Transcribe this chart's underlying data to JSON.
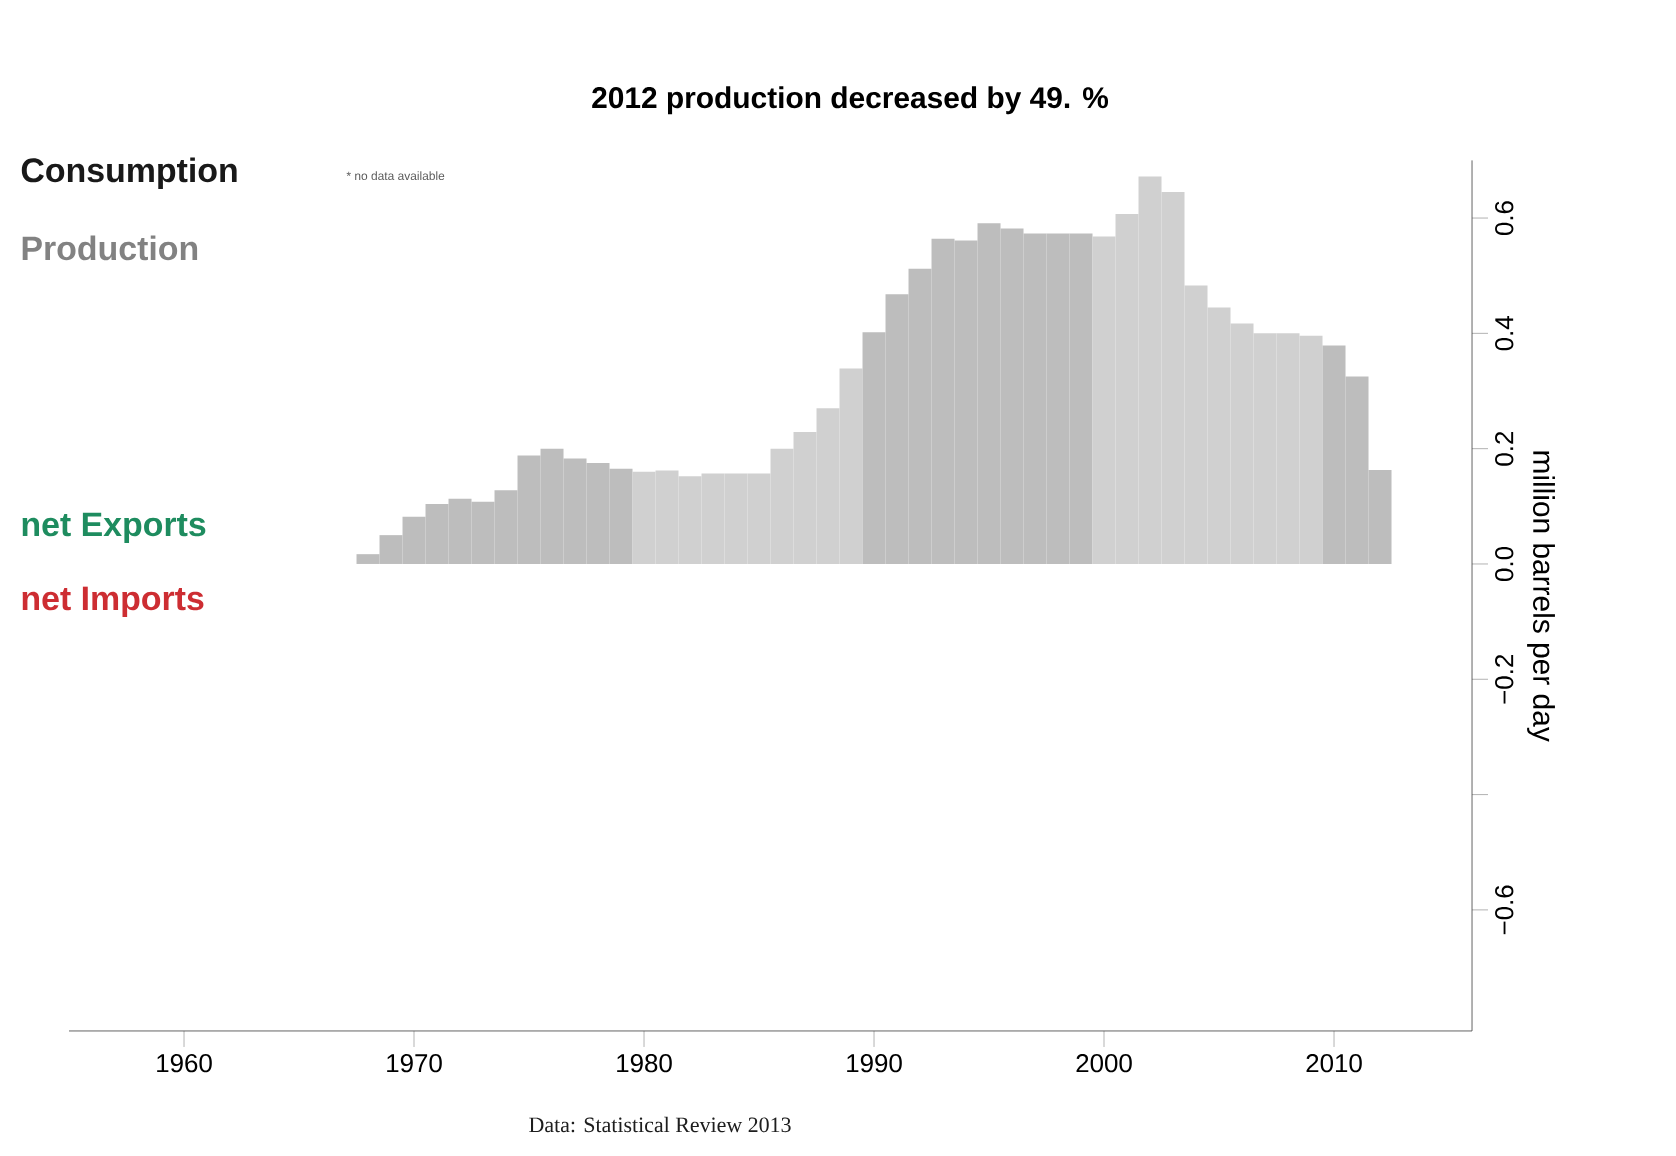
{
  "chart_data": {
    "type": "bar",
    "title": "2012 production decreased by 49. %",
    "ylabel": "million barrels per day",
    "annotations": [
      "Consumption",
      "* no data available",
      "Production",
      "net Exports",
      "net Imports",
      "Data: Statistical Review 2013"
    ],
    "x": [
      1968,
      1969,
      1970,
      1971,
      1972,
      1973,
      1974,
      1975,
      1976,
      1977,
      1978,
      1979,
      1980,
      1981,
      1982,
      1983,
      1984,
      1985,
      1986,
      1987,
      1988,
      1989,
      1990,
      1991,
      1992,
      1993,
      1994,
      1995,
      1996,
      1997,
      1998,
      1999,
      2000,
      2001,
      2002,
      2003,
      2004,
      2005,
      2006,
      2007,
      2008,
      2009,
      2010,
      2011,
      2012
    ],
    "values": [
      0.017,
      0.05,
      0.082,
      0.104,
      0.113,
      0.108,
      0.128,
      0.188,
      0.2,
      0.183,
      0.175,
      0.165,
      0.16,
      0.162,
      0.152,
      0.157,
      0.157,
      0.157,
      0.2,
      0.229,
      0.27,
      0.339,
      0.402,
      0.468,
      0.512,
      0.564,
      0.561,
      0.591,
      0.582,
      0.573,
      0.573,
      0.573,
      0.568,
      0.607,
      0.672,
      0.645,
      0.483,
      0.445,
      0.417,
      0.4,
      0.4,
      0.396,
      0.379,
      0.325,
      0.163
    ],
    "colors": [
      "#bdbdbd",
      "#bdbdbd",
      "#bdbdbd",
      "#bdbdbd",
      "#bdbdbd",
      "#bdbdbd",
      "#bdbdbd",
      "#bdbdbd",
      "#bdbdbd",
      "#bdbdbd",
      "#bdbdbd",
      "#bdbdbd",
      "#d0d0d0",
      "#d0d0d0",
      "#d0d0d0",
      "#d0d0d0",
      "#d0d0d0",
      "#d0d0d0",
      "#d0d0d0",
      "#d0d0d0",
      "#d0d0d0",
      "#d0d0d0",
      "#bdbdbd",
      "#bdbdbd",
      "#bdbdbd",
      "#bdbdbd",
      "#bdbdbd",
      "#bdbdbd",
      "#bdbdbd",
      "#bdbdbd",
      "#bdbdbd",
      "#bdbdbd",
      "#d0d0d0",
      "#d0d0d0",
      "#d0d0d0",
      "#d0d0d0",
      "#d0d0d0",
      "#d0d0d0",
      "#d0d0d0",
      "#d0d0d0",
      "#d0d0d0",
      "#d0d0d0",
      "#bdbdbd",
      "#bdbdbd",
      "#bdbdbd"
    ],
    "xlim": [
      1955,
      2016
    ],
    "ylim": [
      -0.81,
      0.7
    ],
    "xticks": [
      1960,
      1970,
      1980,
      1990,
      2000,
      2010
    ],
    "yticks": [
      {
        "value": -0.6,
        "label": "−0.6"
      },
      {
        "value": -0.4,
        "label": null
      },
      {
        "value": -0.2,
        "label": "−0.2"
      },
      {
        "value": 0,
        "label": "0.0"
      },
      0.2,
      0.4,
      0.6
    ]
  }
}
